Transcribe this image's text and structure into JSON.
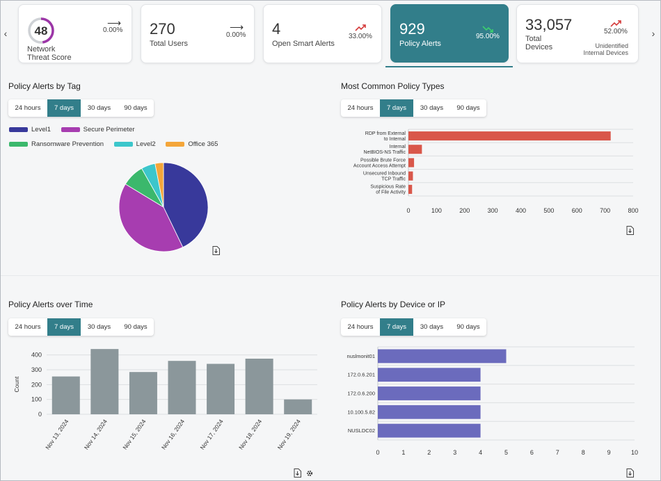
{
  "kpis": [
    {
      "id": "threat",
      "value": "48",
      "label1": "Network",
      "label2": "Threat Score",
      "pct": "0.00%",
      "trend": "flat"
    },
    {
      "id": "users",
      "value": "270",
      "label1": "Total Users",
      "pct": "0.00%",
      "trend": "flat"
    },
    {
      "id": "smart",
      "value": "4",
      "label1": "Open Smart Alerts",
      "pct": "33.00%",
      "trend": "up"
    },
    {
      "id": "policy",
      "value": "929",
      "label1": "Policy Alerts",
      "pct": "95.00%",
      "trend": "down"
    },
    {
      "id": "devices",
      "value": "33,057",
      "label1": "Total",
      "label2": "Devices",
      "pct": "52.00%",
      "trend": "up",
      "sub1": "Unidentified",
      "sub2": "Internal Devices"
    }
  ],
  "ranges": [
    "24 hours",
    "7 days",
    "30 days",
    "90 days"
  ],
  "selected_range": "7 days",
  "panels": {
    "tag": {
      "title": "Policy Alerts by Tag"
    },
    "types": {
      "title": "Most Common Policy Types"
    },
    "time": {
      "title": "Policy Alerts over Time"
    },
    "device": {
      "title": "Policy Alerts by Device or IP"
    }
  },
  "colors": {
    "accent": "#327e8a",
    "bar_red": "#d9574a",
    "bar_gray": "#8b979b",
    "bar_purple": "#6b6bbd"
  },
  "chart_data": [
    {
      "type": "pie",
      "title": "Policy Alerts by Tag",
      "labels": [
        "Level1",
        "Secure Perimeter",
        "Ransomware Prevention",
        "Level2",
        "Office 365"
      ],
      "values": [
        42,
        40,
        8,
        5,
        3
      ],
      "colors": [
        "#38399b",
        "#a73db0",
        "#3bb86c",
        "#3cc6cb",
        "#f4a63a"
      ]
    },
    {
      "type": "bar",
      "orientation": "horizontal",
      "title": "Most Common Policy Types",
      "categories": [
        [
          "RDP from External",
          "to Internal"
        ],
        [
          "Internal",
          "NetBIOS-NS Traffic"
        ],
        [
          "Possible Brute Force",
          "Account Access Attempt"
        ],
        [
          "Unsecured Inbound",
          "TCP Traffic"
        ],
        [
          "Suspicious Rate",
          "of File Activity"
        ]
      ],
      "values": [
        720,
        48,
        20,
        16,
        13
      ],
      "xlim": [
        0,
        800
      ],
      "xticks": [
        0,
        100,
        200,
        300,
        400,
        500,
        600,
        700,
        800
      ]
    },
    {
      "type": "bar",
      "title": "Policy Alerts over Time",
      "categories": [
        "Nov 13, 2024",
        "Nov 14, 2024",
        "Nov 15, 2024",
        "Nov 16, 2024",
        "Nov 17, 2024",
        "Nov 18, 2024",
        "Nov 19, 2024"
      ],
      "values": [
        255,
        440,
        285,
        360,
        340,
        375,
        100
      ],
      "ylabel": "Count",
      "ylim": [
        0,
        450
      ],
      "yticks": [
        0,
        100,
        200,
        300,
        400
      ]
    },
    {
      "type": "bar",
      "orientation": "horizontal",
      "title": "Policy Alerts by Device or IP",
      "categories": [
        "nuslmonit01",
        "172.0.6.201",
        "172.0.6.200",
        "10.100.5.82",
        "NUSLDC02"
      ],
      "values": [
        5,
        4,
        4,
        4,
        4
      ],
      "xlim": [
        0,
        10
      ],
      "xticks": [
        0,
        1,
        2,
        3,
        4,
        5,
        6,
        7,
        8,
        9,
        10
      ]
    }
  ]
}
